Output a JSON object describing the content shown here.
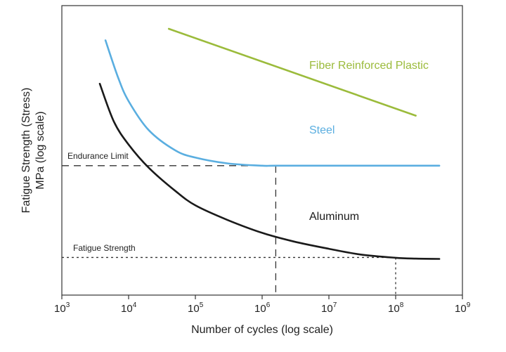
{
  "chart_data": {
    "type": "line",
    "title": "",
    "xlabel": "Number of cycles (log scale)",
    "ylabel_lines": [
      "Fatigue Strength (Stress)",
      "MPa (log scale)"
    ],
    "x_scale": "log",
    "xlim": [
      1000,
      1000000000
    ],
    "ylim": [
      0,
      100
    ],
    "x_ticks": [
      {
        "value": 1000,
        "base": "10",
        "exp": "3"
      },
      {
        "value": 10000,
        "base": "10",
        "exp": "4"
      },
      {
        "value": 100000,
        "base": "10",
        "exp": "5"
      },
      {
        "value": 1000000,
        "base": "10",
        "exp": "6"
      },
      {
        "value": 10000000,
        "base": "10",
        "exp": "7"
      },
      {
        "value": 100000000,
        "base": "10",
        "exp": "8"
      },
      {
        "value": 1000000000,
        "base": "10",
        "exp": "9"
      }
    ],
    "grid": false,
    "legend": "none",
    "series": [
      {
        "name": "Fiber Reinforced Plastic",
        "color": "#9bbb3b",
        "points": [
          [
            40000,
            92
          ],
          [
            200000000,
            62
          ]
        ]
      },
      {
        "name": "Steel",
        "color": "#5aaee0",
        "points": [
          [
            4500,
            88
          ],
          [
            7000,
            75
          ],
          [
            10000,
            67
          ],
          [
            20000,
            57
          ],
          [
            50000,
            50
          ],
          [
            100000,
            47.5
          ],
          [
            300000,
            45.5
          ],
          [
            1000000,
            44.7
          ],
          [
            1600000,
            44.7
          ],
          [
            10000000,
            44.7
          ],
          [
            100000000,
            44.7
          ],
          [
            450000000,
            44.7
          ]
        ]
      },
      {
        "name": "Aluminum",
        "color": "#1a1a1a",
        "points": [
          [
            3700,
            73
          ],
          [
            6000,
            60
          ],
          [
            10000,
            52
          ],
          [
            20000,
            44
          ],
          [
            50000,
            36
          ],
          [
            100000,
            31
          ],
          [
            300000,
            26
          ],
          [
            1000000,
            21.5
          ],
          [
            3000000,
            18.5
          ],
          [
            10000000,
            16
          ],
          [
            30000000,
            14
          ],
          [
            100000000,
            12.9
          ],
          [
            200000000,
            12.6
          ],
          [
            450000000,
            12.5
          ]
        ]
      }
    ],
    "reference_lines": [
      {
        "label": "Endurance Limit",
        "y": 44.7,
        "x_end": 1600000,
        "style": "long-dash"
      },
      {
        "label": "Fatigue Strength",
        "y": 13,
        "x_end": 100000000,
        "style": "short-dash"
      }
    ],
    "series_labels": [
      {
        "text": "Fiber Reinforced Plastic",
        "color": "#9bbb3b"
      },
      {
        "text": "Steel",
        "color": "#5aaee0"
      },
      {
        "text": "Aluminum",
        "color": "#1a1a1a"
      }
    ]
  }
}
